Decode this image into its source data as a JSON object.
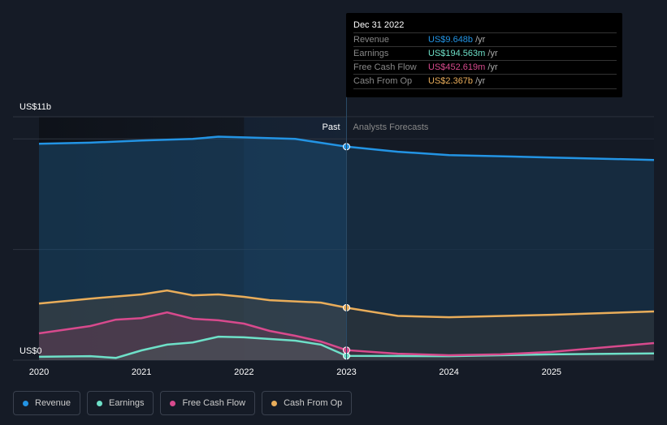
{
  "chart_data": {
    "type": "area",
    "ylabel_top": "US$11b",
    "ylabel_bottom": "US$0",
    "ylim": [
      0,
      11
    ],
    "xlim": [
      2020,
      2026
    ],
    "x_ticks": [
      "2020",
      "2021",
      "2022",
      "2023",
      "2024",
      "2025"
    ],
    "past_label": "Past",
    "forecast_label": "Analysts Forecasts",
    "series": [
      {
        "name": "Revenue",
        "color": "#2394e4",
        "x": [
          2020,
          2020.5,
          2021,
          2021.5,
          2021.75,
          2022,
          2022.5,
          2023,
          2023.5,
          2024,
          2025,
          2026
        ],
        "values": [
          9.78,
          9.83,
          9.93,
          10.0,
          10.1,
          10.07,
          10.0,
          9.65,
          9.42,
          9.27,
          9.16,
          9.05
        ]
      },
      {
        "name": "Earnings",
        "color": "#6ee0c8",
        "x": [
          2020,
          2020.5,
          2020.75,
          2021,
          2021.25,
          2021.5,
          2021.75,
          2022,
          2022.5,
          2022.75,
          2023,
          2024,
          2025,
          2026
        ],
        "values": [
          0.15,
          0.18,
          0.1,
          0.44,
          0.7,
          0.8,
          1.06,
          1.03,
          0.88,
          0.7,
          0.19,
          0.18,
          0.26,
          0.3
        ]
      },
      {
        "name": "Free Cash Flow",
        "color": "#d84a8d",
        "x": [
          2020,
          2020.5,
          2020.75,
          2021,
          2021.25,
          2021.5,
          2021.75,
          2022,
          2022.25,
          2022.5,
          2022.75,
          2023,
          2023.5,
          2024,
          2024.5,
          2025,
          2026
        ],
        "values": [
          1.21,
          1.54,
          1.83,
          1.9,
          2.16,
          1.87,
          1.8,
          1.65,
          1.32,
          1.1,
          0.84,
          0.45,
          0.29,
          0.22,
          0.26,
          0.37,
          0.77
        ]
      },
      {
        "name": "Cash From Op",
        "color": "#e9ad5a",
        "x": [
          2020,
          2020.5,
          2021,
          2021.25,
          2021.5,
          2021.75,
          2022,
          2022.25,
          2022.75,
          2023,
          2023.5,
          2024,
          2025,
          2026
        ],
        "values": [
          2.56,
          2.78,
          2.97,
          3.15,
          2.93,
          2.97,
          2.86,
          2.71,
          2.6,
          2.37,
          2.0,
          1.94,
          2.05,
          2.2
        ]
      }
    ],
    "tooltip": {
      "date": "Dec 31 2022",
      "unit": "/yr",
      "rows": [
        {
          "label": "Revenue",
          "value": "US$9.648b"
        },
        {
          "label": "Earnings",
          "value": "US$194.563m"
        },
        {
          "label": "Free Cash Flow",
          "value": "US$452.619m"
        },
        {
          "label": "Cash From Op",
          "value": "US$2.367b"
        }
      ]
    }
  }
}
